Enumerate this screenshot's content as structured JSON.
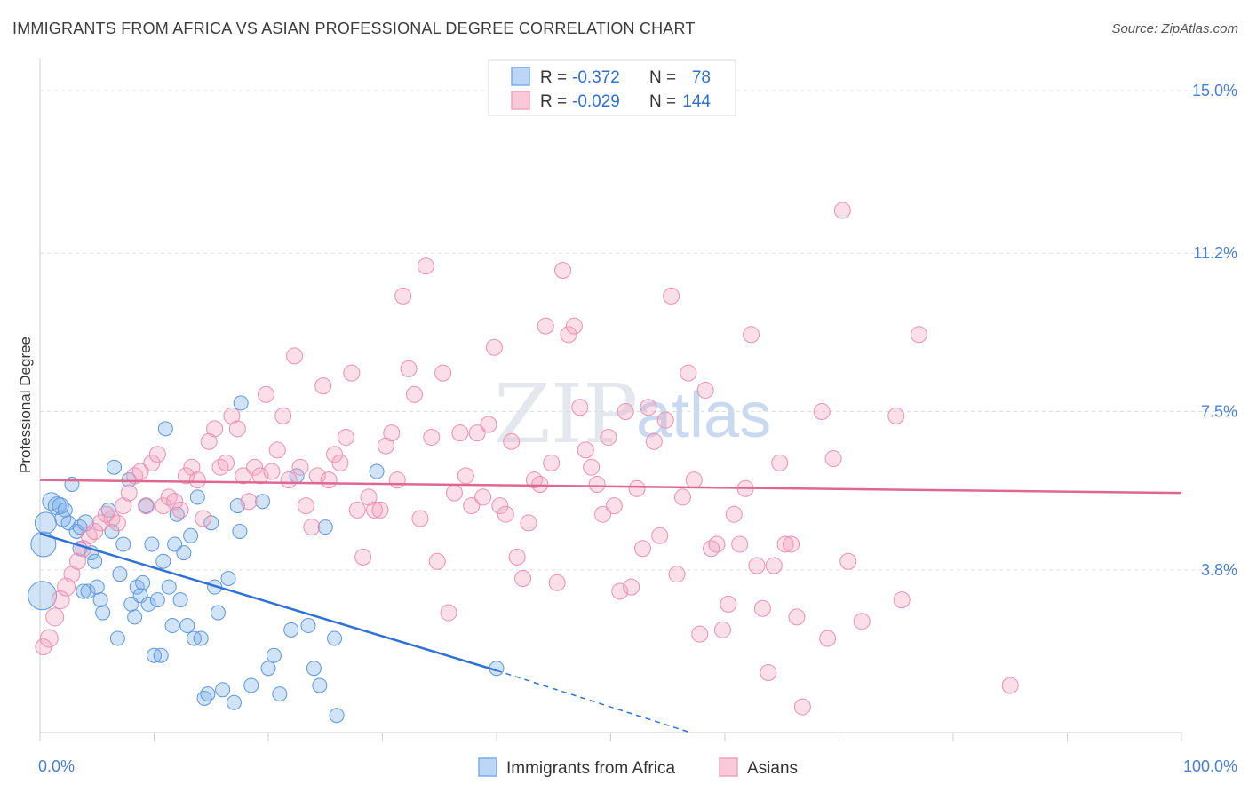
{
  "title": "IMMIGRANTS FROM AFRICA VS ASIAN PROFESSIONAL DEGREE CORRELATION CHART",
  "source": "Source: ZipAtlas.com",
  "watermark": {
    "zip": "ZIP",
    "atlas": "atlas"
  },
  "legend": {
    "rows": [
      {
        "r_label": "R =",
        "r_value": "-0.372",
        "n_label": "N =",
        "n_value": "78",
        "color": "#7aaee8"
      },
      {
        "r_label": "R =",
        "r_value": "-0.029",
        "n_label": "N =",
        "n_value": "144",
        "color": "#f1a3bd"
      }
    ]
  },
  "bottom_legend": [
    {
      "label": "Immigrants from Africa",
      "color": "#7aaee8"
    },
    {
      "label": "Asians",
      "color": "#f1a3bd"
    }
  ],
  "chart_data": {
    "type": "scatter",
    "title": "IMMIGRANTS FROM AFRICA VS ASIAN PROFESSIONAL DEGREE CORRELATION CHART",
    "xlabel": "",
    "ylabel": "Professional Degree",
    "xlim": [
      0,
      100
    ],
    "ylim": [
      0,
      15.5
    ],
    "x_tick_labels": [
      "0.0%",
      "100.0%"
    ],
    "y_ticks": [
      3.8,
      7.5,
      11.2,
      15.0
    ],
    "y_tick_labels": [
      "3.8%",
      "7.5%",
      "11.2%",
      "15.0%"
    ],
    "series": [
      {
        "name": "Immigrants from Africa",
        "color": "#7aaee8",
        "line_color": "#2f72d4",
        "trend": {
          "x0": 0,
          "y0": 4.65,
          "x1": 40,
          "y1": 1.45,
          "dash_x1": 57,
          "dash_y1": 0.0
        },
        "points": [
          [
            0.2,
            3.2,
            16
          ],
          [
            0.3,
            4.4,
            14
          ],
          [
            0.5,
            4.9,
            12
          ],
          [
            1.0,
            5.4,
            10
          ],
          [
            1.5,
            5.3,
            10
          ],
          [
            1.8,
            5.3,
            9
          ],
          [
            2.0,
            5.0,
            9
          ],
          [
            2.2,
            5.2,
            8
          ],
          [
            2.5,
            4.9,
            8
          ],
          [
            2.8,
            5.8,
            8
          ],
          [
            3.2,
            4.7,
            8
          ],
          [
            3.5,
            4.8,
            8
          ],
          [
            3.5,
            4.3,
            8
          ],
          [
            3.8,
            3.3,
            8
          ],
          [
            4.0,
            4.9,
            9
          ],
          [
            4.2,
            3.3,
            8
          ],
          [
            4.5,
            4.2,
            8
          ],
          [
            4.8,
            4.0,
            8
          ],
          [
            5.0,
            3.4,
            8
          ],
          [
            5.3,
            3.1,
            8
          ],
          [
            5.5,
            2.8,
            8
          ],
          [
            6.0,
            5.2,
            8
          ],
          [
            6.3,
            4.7,
            8
          ],
          [
            6.5,
            6.2,
            8
          ],
          [
            6.8,
            2.2,
            8
          ],
          [
            7.0,
            3.7,
            8
          ],
          [
            7.3,
            4.4,
            8
          ],
          [
            7.8,
            5.9,
            8
          ],
          [
            8.0,
            3.0,
            8
          ],
          [
            8.3,
            2.7,
            8
          ],
          [
            8.5,
            3.4,
            8
          ],
          [
            8.8,
            3.2,
            8
          ],
          [
            9.0,
            3.5,
            8
          ],
          [
            9.3,
            5.3,
            8
          ],
          [
            9.5,
            3.0,
            8
          ],
          [
            9.8,
            4.4,
            8
          ],
          [
            10.0,
            1.8,
            8
          ],
          [
            10.3,
            3.1,
            8
          ],
          [
            10.6,
            1.8,
            8
          ],
          [
            10.8,
            4.0,
            8
          ],
          [
            11.0,
            7.1,
            8
          ],
          [
            11.3,
            3.4,
            8
          ],
          [
            11.6,
            2.5,
            8
          ],
          [
            11.8,
            4.4,
            8
          ],
          [
            12.0,
            5.1,
            8
          ],
          [
            12.3,
            3.1,
            8
          ],
          [
            12.6,
            4.2,
            8
          ],
          [
            12.9,
            2.5,
            8
          ],
          [
            13.2,
            4.6,
            8
          ],
          [
            13.5,
            2.2,
            8
          ],
          [
            13.8,
            5.5,
            8
          ],
          [
            14.1,
            2.2,
            8
          ],
          [
            14.4,
            0.8,
            8
          ],
          [
            14.7,
            0.9,
            8
          ],
          [
            15.0,
            4.9,
            8
          ],
          [
            15.3,
            3.4,
            8
          ],
          [
            15.6,
            2.8,
            8
          ],
          [
            16.0,
            1.0,
            8
          ],
          [
            16.5,
            3.6,
            8
          ],
          [
            17.0,
            0.7,
            8
          ],
          [
            17.3,
            5.3,
            8
          ],
          [
            17.5,
            4.7,
            8
          ],
          [
            17.6,
            7.7,
            8
          ],
          [
            18.5,
            1.1,
            8
          ],
          [
            19.5,
            5.4,
            8
          ],
          [
            20.0,
            1.5,
            8
          ],
          [
            20.5,
            1.8,
            8
          ],
          [
            21.0,
            0.9,
            8
          ],
          [
            22.0,
            2.4,
            8
          ],
          [
            22.5,
            6.0,
            8
          ],
          [
            23.5,
            2.5,
            8
          ],
          [
            24.0,
            1.5,
            8
          ],
          [
            24.5,
            1.1,
            8
          ],
          [
            25.0,
            4.8,
            8
          ],
          [
            25.8,
            2.2,
            8
          ],
          [
            26.0,
            0.4,
            8
          ],
          [
            29.5,
            6.1,
            8
          ],
          [
            40.0,
            1.5,
            8
          ]
        ]
      },
      {
        "name": "Asians",
        "color": "#f1a3bd",
        "line_color": "#e0688f",
        "trend": {
          "x0": 0,
          "y0": 5.9,
          "x1": 100,
          "y1": 5.6
        },
        "points": [
          [
            0.3,
            2.0,
            9
          ],
          [
            0.8,
            2.2,
            10
          ],
          [
            1.3,
            2.7,
            10
          ],
          [
            1.8,
            3.1,
            10
          ],
          [
            2.3,
            3.4,
            10
          ],
          [
            2.8,
            3.7,
            9
          ],
          [
            3.3,
            4.0,
            9
          ],
          [
            3.8,
            4.3,
            9
          ],
          [
            4.3,
            4.6,
            9
          ],
          [
            4.8,
            4.7,
            9
          ],
          [
            5.3,
            4.9,
            9
          ],
          [
            5.8,
            5.1,
            9
          ],
          [
            6.3,
            5.0,
            9
          ],
          [
            6.8,
            4.9,
            9
          ],
          [
            7.3,
            5.3,
            9
          ],
          [
            7.8,
            5.6,
            9
          ],
          [
            8.3,
            6.0,
            9
          ],
          [
            8.8,
            6.1,
            9
          ],
          [
            9.3,
            5.3,
            9
          ],
          [
            9.8,
            6.3,
            9
          ],
          [
            10.3,
            6.5,
            9
          ],
          [
            10.8,
            5.3,
            9
          ],
          [
            11.3,
            5.5,
            9
          ],
          [
            11.8,
            5.4,
            9
          ],
          [
            12.3,
            5.2,
            9
          ],
          [
            12.8,
            6.0,
            9
          ],
          [
            13.3,
            6.2,
            9
          ],
          [
            13.8,
            5.9,
            9
          ],
          [
            14.3,
            5.0,
            9
          ],
          [
            14.8,
            6.8,
            9
          ],
          [
            15.3,
            7.1,
            9
          ],
          [
            15.8,
            6.2,
            9
          ],
          [
            16.3,
            6.3,
            9
          ],
          [
            16.8,
            7.4,
            9
          ],
          [
            17.3,
            7.1,
            9
          ],
          [
            17.8,
            6.0,
            9
          ],
          [
            18.3,
            5.4,
            9
          ],
          [
            18.8,
            6.2,
            9
          ],
          [
            19.3,
            6.0,
            9
          ],
          [
            19.8,
            7.9,
            9
          ],
          [
            20.3,
            6.1,
            9
          ],
          [
            20.8,
            6.6,
            9
          ],
          [
            21.3,
            7.4,
            9
          ],
          [
            21.8,
            5.9,
            9
          ],
          [
            22.3,
            8.8,
            9
          ],
          [
            22.8,
            6.2,
            9
          ],
          [
            23.3,
            5.3,
            9
          ],
          [
            23.8,
            4.8,
            9
          ],
          [
            24.3,
            6.0,
            9
          ],
          [
            24.8,
            8.1,
            9
          ],
          [
            25.3,
            5.9,
            9
          ],
          [
            25.8,
            6.5,
            9
          ],
          [
            26.3,
            6.3,
            9
          ],
          [
            26.8,
            6.9,
            9
          ],
          [
            27.3,
            8.4,
            9
          ],
          [
            27.8,
            5.2,
            9
          ],
          [
            28.3,
            4.1,
            9
          ],
          [
            28.8,
            5.5,
            9
          ],
          [
            29.3,
            5.2,
            9
          ],
          [
            29.8,
            5.2,
            9
          ],
          [
            30.3,
            6.7,
            9
          ],
          [
            30.8,
            7.0,
            9
          ],
          [
            31.3,
            5.9,
            9
          ],
          [
            31.8,
            10.2,
            9
          ],
          [
            32.3,
            8.5,
            9
          ],
          [
            32.8,
            7.9,
            9
          ],
          [
            33.3,
            5.0,
            9
          ],
          [
            33.8,
            10.9,
            9
          ],
          [
            34.3,
            6.9,
            9
          ],
          [
            34.8,
            4.0,
            9
          ],
          [
            35.3,
            8.4,
            9
          ],
          [
            35.8,
            2.8,
            9
          ],
          [
            36.3,
            5.6,
            9
          ],
          [
            36.8,
            7.0,
            9
          ],
          [
            37.3,
            6.0,
            9
          ],
          [
            37.8,
            5.3,
            9
          ],
          [
            38.3,
            7.0,
            9
          ],
          [
            38.8,
            5.5,
            9
          ],
          [
            39.3,
            7.2,
            9
          ],
          [
            39.8,
            9.0,
            9
          ],
          [
            40.3,
            5.3,
            9
          ],
          [
            40.8,
            5.1,
            9
          ],
          [
            41.3,
            6.8,
            9
          ],
          [
            41.8,
            4.1,
            9
          ],
          [
            42.3,
            3.6,
            9
          ],
          [
            42.8,
            4.9,
            9
          ],
          [
            43.3,
            5.9,
            9
          ],
          [
            43.8,
            5.8,
            9
          ],
          [
            44.3,
            9.5,
            9
          ],
          [
            44.8,
            6.3,
            9
          ],
          [
            45.3,
            3.5,
            9
          ],
          [
            45.8,
            10.8,
            9
          ],
          [
            46.3,
            9.3,
            9
          ],
          [
            46.8,
            9.5,
            9
          ],
          [
            47.3,
            7.6,
            9
          ],
          [
            47.8,
            6.6,
            9
          ],
          [
            48.3,
            6.2,
            9
          ],
          [
            48.8,
            5.8,
            9
          ],
          [
            49.3,
            5.1,
            9
          ],
          [
            49.8,
            6.9,
            9
          ],
          [
            50.3,
            5.3,
            9
          ],
          [
            50.8,
            3.3,
            9
          ],
          [
            51.3,
            7.5,
            9
          ],
          [
            51.8,
            3.4,
            9
          ],
          [
            52.3,
            5.7,
            9
          ],
          [
            52.8,
            4.3,
            9
          ],
          [
            53.3,
            7.6,
            9
          ],
          [
            53.8,
            6.8,
            9
          ],
          [
            54.3,
            4.6,
            9
          ],
          [
            54.8,
            7.3,
            9
          ],
          [
            55.3,
            10.2,
            9
          ],
          [
            55.8,
            3.7,
            9
          ],
          [
            56.3,
            5.5,
            9
          ],
          [
            56.8,
            8.4,
            9
          ],
          [
            57.3,
            5.9,
            9
          ],
          [
            57.8,
            2.3,
            9
          ],
          [
            58.3,
            8.0,
            9
          ],
          [
            58.8,
            4.3,
            9
          ],
          [
            59.3,
            4.4,
            9
          ],
          [
            59.8,
            2.4,
            9
          ],
          [
            60.3,
            3.0,
            9
          ],
          [
            60.8,
            5.1,
            9
          ],
          [
            61.3,
            4.4,
            9
          ],
          [
            61.8,
            5.7,
            9
          ],
          [
            62.3,
            9.3,
            9
          ],
          [
            62.8,
            3.9,
            9
          ],
          [
            63.3,
            2.9,
            9
          ],
          [
            63.8,
            1.4,
            9
          ],
          [
            64.3,
            3.9,
            9
          ],
          [
            64.8,
            6.3,
            9
          ],
          [
            65.3,
            4.4,
            9
          ],
          [
            65.8,
            4.4,
            9
          ],
          [
            66.3,
            2.7,
            9
          ],
          [
            66.8,
            0.6,
            9
          ],
          [
            68.5,
            7.5,
            9
          ],
          [
            69.0,
            2.2,
            9
          ],
          [
            69.5,
            6.4,
            9
          ],
          [
            70.3,
            12.2,
            9
          ],
          [
            70.8,
            4.0,
            9
          ],
          [
            72.0,
            2.6,
            9
          ],
          [
            75.0,
            7.4,
            9
          ],
          [
            75.5,
            3.1,
            9
          ],
          [
            77.0,
            9.3,
            9
          ],
          [
            85.0,
            1.1,
            9
          ]
        ]
      }
    ]
  }
}
